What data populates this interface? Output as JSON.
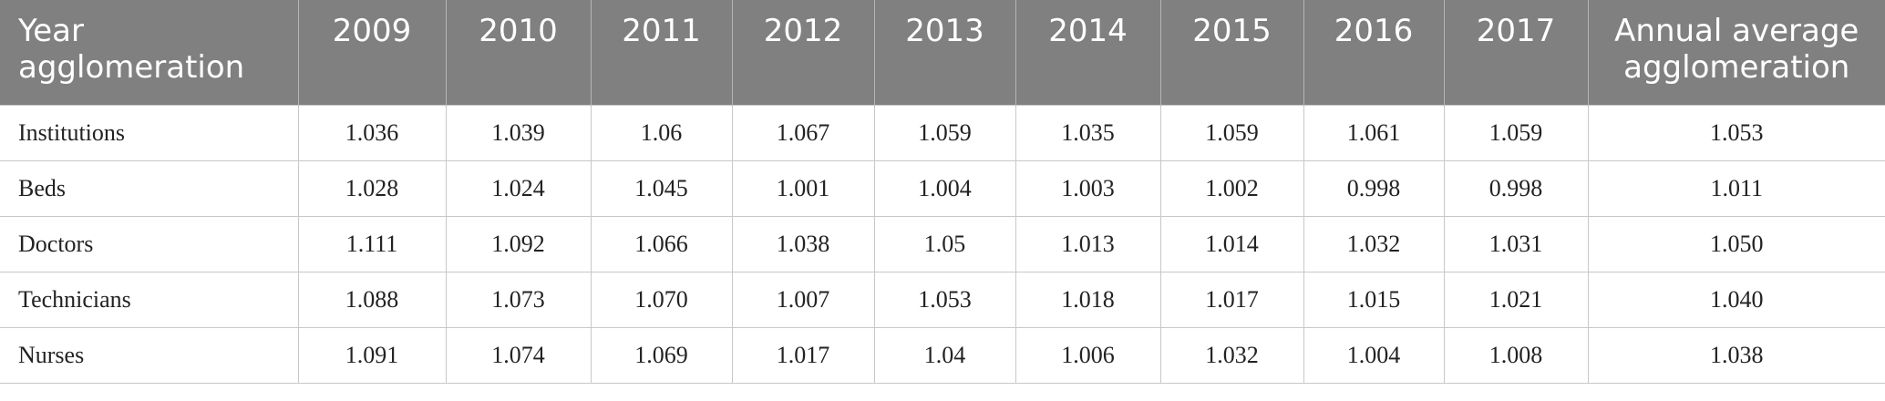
{
  "table": {
    "header": [
      "Year agglomeration",
      "2009",
      "2010",
      "2011",
      "2012",
      "2013",
      "2014",
      "2015",
      "2016",
      "2017",
      "Annual average agglomeration"
    ],
    "rows": [
      [
        "Institutions",
        "1.036",
        "1.039",
        "1.06",
        "1.067",
        "1.059",
        "1.035",
        "1.059",
        "1.061",
        "1.059",
        "1.053"
      ],
      [
        "Beds",
        "1.028",
        "1.024",
        "1.045",
        "1.001",
        "1.004",
        "1.003",
        "1.002",
        "0.998",
        "0.998",
        "1.011"
      ],
      [
        "Doctors",
        "1.111",
        "1.092",
        "1.066",
        "1.038",
        "1.05",
        "1.013",
        "1.014",
        "1.032",
        "1.031",
        "1.050"
      ],
      [
        "Technicians",
        "1.088",
        "1.073",
        "1.070",
        "1.007",
        "1.053",
        "1.018",
        "1.017",
        "1.015",
        "1.021",
        "1.040"
      ],
      [
        "Nurses",
        "1.091",
        "1.074",
        "1.069",
        "1.017",
        "1.04",
        "1.006",
        "1.032",
        "1.004",
        "1.008",
        "1.038"
      ]
    ]
  }
}
